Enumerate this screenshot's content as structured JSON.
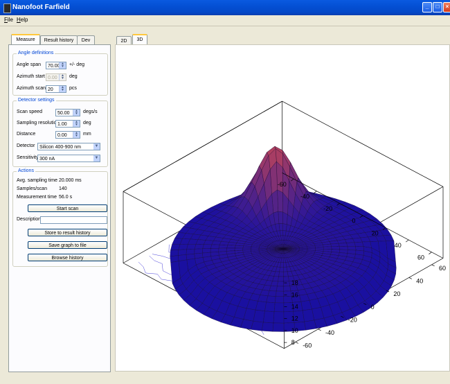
{
  "window": {
    "title": "Nanofoot Farfield"
  },
  "menu": {
    "file": "File",
    "help": "Help"
  },
  "left_tabs": {
    "measure": "Measure",
    "result_history": "Result history",
    "dev": "Dev"
  },
  "plot_tabs": {
    "tab_2d": "2D",
    "tab_3d": "3D"
  },
  "angle": {
    "title": "Angle definitions",
    "span_label": "Angle span",
    "span_value": "70.00",
    "span_unit": "+/- deg",
    "az_start_label": "Azimuth start",
    "az_start_value": "0.00",
    "az_start_unit": "deg",
    "az_scans_label": "Azimuth scans",
    "az_scans_value": "20",
    "az_scans_unit": "pcs"
  },
  "detector": {
    "title": "Detector settings",
    "speed_label": "Scan speed",
    "speed_value": "50.00",
    "speed_unit": "degs/s",
    "res_label": "Sampling resolution",
    "res_value": "1.00",
    "res_unit": "deg",
    "dist_label": "Distance",
    "dist_value": "0.00",
    "dist_unit": "mm",
    "det_label": "Detector",
    "det_value": "Silicon 400-900 nm",
    "sens_label": "Sensitivity",
    "sens_value": "300 nA"
  },
  "actions": {
    "title": "Actions",
    "avg_label": "Avg. sampling time",
    "avg_value": "20.000 ms",
    "samples_label": "Samples/scan",
    "samples_value": "140",
    "meas_label": "Measurement time",
    "meas_value": "56.0 s",
    "start_btn": "Start scan",
    "desc_label": "Description",
    "desc_value": "",
    "store_btn": "Store to result history",
    "save_btn": "Save graph to file",
    "browse_btn": "Browse history"
  },
  "colors": {
    "accent_blue": "#0046d5",
    "surface_top": "#b04060",
    "surface_low": "#1a10a0"
  },
  "chart_data": {
    "type": "surface",
    "x_ticks": [
      "-60",
      "-40",
      "-20",
      "0",
      "20",
      "40",
      "60"
    ],
    "y_ticks": [
      "60",
      "40",
      "20",
      "0",
      "-20",
      "-40",
      "-60"
    ],
    "z_ticks": [
      "8",
      "10",
      "12",
      "14",
      "16",
      "18"
    ],
    "xlim": [
      -70,
      70
    ],
    "ylim": [
      -70,
      70
    ],
    "zlim": [
      7,
      19
    ]
  }
}
